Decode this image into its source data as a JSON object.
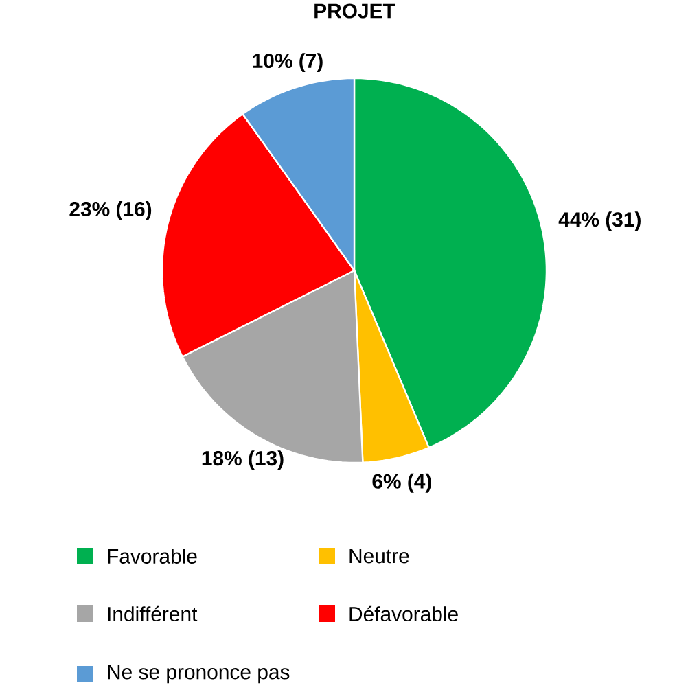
{
  "chart_data": {
    "type": "pie",
    "title": "PROJET",
    "categories": [
      "Favorable",
      "Neutre",
      "Indifférent",
      "Défavorable",
      "Ne se prononce pas"
    ],
    "values": [
      31,
      4,
      13,
      16,
      7
    ],
    "value_labels": [
      "44% (31)",
      "6% (4)",
      "18% (13)",
      "23% (16)",
      "10% (7)"
    ],
    "colors": [
      "#00b050",
      "#ffc000",
      "#a6a6a6",
      "#ff0000",
      "#5b9bd5"
    ],
    "legend": "bottom"
  }
}
